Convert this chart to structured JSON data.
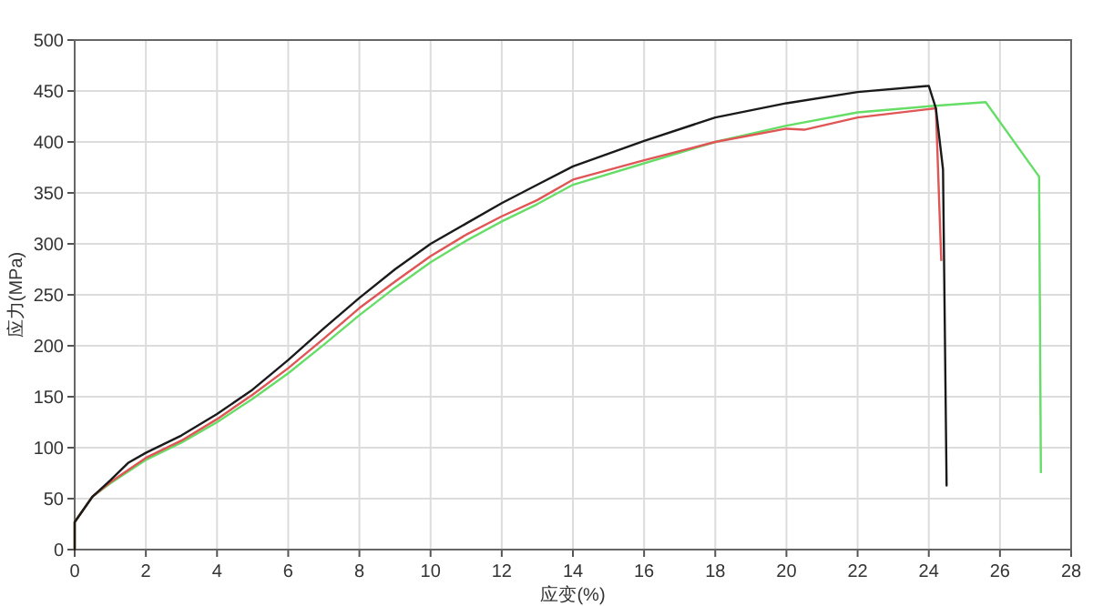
{
  "chart_data": {
    "type": "line",
    "xlabel": "应变(%)",
    "ylabel": "应力(MPa)",
    "xlim": [
      0,
      28
    ],
    "xticks": [
      0,
      2,
      4,
      6,
      8,
      10,
      12,
      14,
      16,
      18,
      20,
      22,
      24,
      26,
      28
    ],
    "ylim": [
      0,
      500
    ],
    "yticks": [
      0,
      50,
      100,
      150,
      200,
      250,
      300,
      350,
      400,
      450,
      500
    ],
    "grid": true,
    "marker": "none",
    "line_style": "solid",
    "series": [
      {
        "color": "#66dd66",
        "x": [
          0,
          0,
          0.5,
          1,
          2,
          3,
          4,
          5,
          6,
          7,
          8,
          9,
          10,
          11,
          12,
          13,
          14,
          16,
          18,
          20,
          22,
          24,
          25.6,
          27.1,
          27.15
        ],
        "values": [
          0,
          27,
          52,
          65,
          88,
          105,
          125,
          148,
          173,
          201,
          230,
          257,
          282,
          303,
          322,
          339,
          358,
          379,
          400,
          416,
          429,
          435,
          439,
          366,
          76
        ]
      },
      {
        "color": "#e05555",
        "x": [
          0,
          0,
          0.5,
          1,
          2,
          3,
          4,
          5,
          6,
          7,
          8,
          9,
          10,
          11,
          12,
          13,
          14,
          16,
          18,
          20,
          20.5,
          22,
          24.2,
          24.35
        ],
        "values": [
          0,
          27,
          52,
          66,
          90,
          107,
          128,
          152,
          178,
          207,
          237,
          263,
          288,
          309,
          327,
          343,
          363,
          382,
          400,
          413,
          412,
          424,
          433,
          284
        ]
      },
      {
        "color": "#1a1a1a",
        "x": [
          0,
          0,
          0.5,
          1,
          1.5,
          2,
          3,
          4,
          5,
          6,
          7,
          8,
          9,
          10,
          11,
          12,
          13,
          14,
          16,
          18,
          20,
          22,
          24,
          24.2,
          24.4,
          24.5
        ],
        "values": [
          0,
          27,
          52,
          68,
          85,
          95,
          112,
          133,
          157,
          186,
          217,
          247,
          275,
          300,
          320,
          340,
          358,
          376,
          401,
          424,
          438,
          449,
          455,
          433,
          373,
          63
        ]
      }
    ]
  }
}
